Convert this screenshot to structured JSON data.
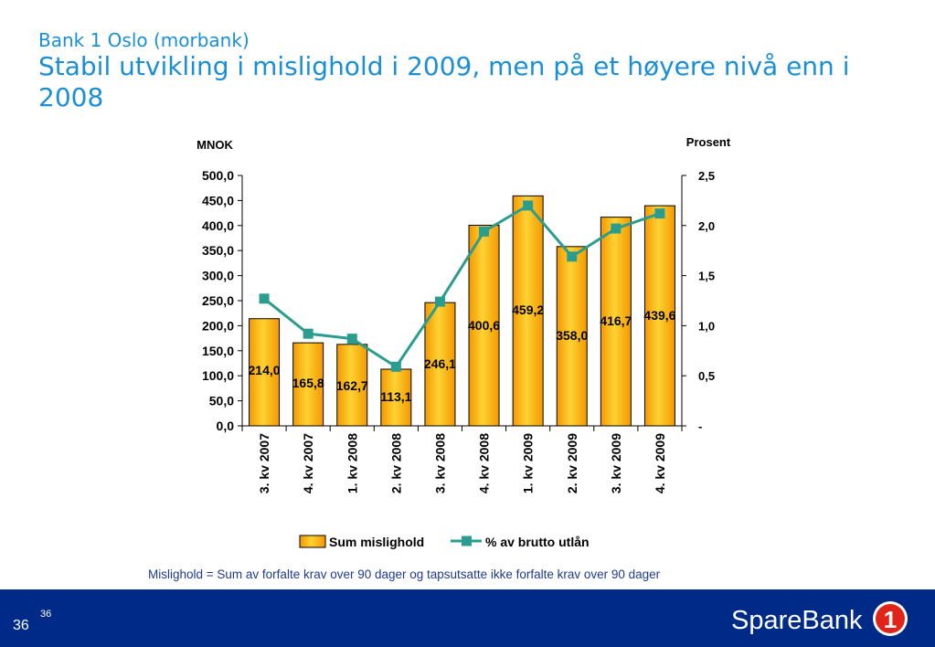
{
  "slide": {
    "subtitle": "Bank 1 Oslo (morbank)",
    "title": "Stabil utvikling i mislighold i 2009, men på et høyere nivå enn i 2008",
    "footnote": "Mislighold = Sum av forfalte krav over 90 dager og tapsutsatte ikke forfalte krav over 90 dager",
    "page_number": "36",
    "page_number_sup": "36",
    "logo_text": "SpareBank",
    "logo_mark": "1"
  },
  "colors": {
    "title": "#1a8fd8",
    "bar_fill": "#ffb300",
    "line": "#2a9d8f",
    "footer": "#002a87",
    "logo_red": "#e2231a"
  },
  "chart_data": {
    "type": "bar",
    "categories": [
      "3. kv 2007",
      "4. kv 2007",
      "1. kv 2008",
      "2. kv 2008",
      "3. kv 2008",
      "4. kv 2008",
      "1. kv 2009",
      "2. kv 2009",
      "3. kv 2009",
      "4. kv 2009"
    ],
    "series": [
      {
        "name": "Sum mislighold",
        "type": "bar",
        "axis": "left",
        "values": [
          214.0,
          165.8,
          162.7,
          113.1,
          246.1,
          400.6,
          459.2,
          358.0,
          416.7,
          439.6
        ],
        "labels": [
          "214,0",
          "165,8",
          "162,7",
          "113,1",
          "246,1",
          "400,6",
          "459,2",
          "358,0",
          "416,7",
          "439,6"
        ]
      },
      {
        "name": "% av brutto utlån",
        "type": "line",
        "axis": "right",
        "values": [
          1.27,
          0.92,
          0.87,
          0.59,
          1.24,
          1.94,
          2.2,
          1.69,
          1.97,
          2.12
        ]
      }
    ],
    "ylabel": "MNOK",
    "y2label": "Prosent",
    "ylim": [
      0,
      500
    ],
    "y2lim": [
      0,
      2.5
    ],
    "yticks": [
      "0,0",
      "50,0",
      "100,0",
      "150,0",
      "200,0",
      "250,0",
      "300,0",
      "350,0",
      "400,0",
      "450,0",
      "500,0"
    ],
    "y2ticks": [
      "-",
      "0,5",
      "1,0",
      "1,5",
      "2,0",
      "2,5"
    ],
    "grid": false,
    "legend_position": "bottom"
  }
}
